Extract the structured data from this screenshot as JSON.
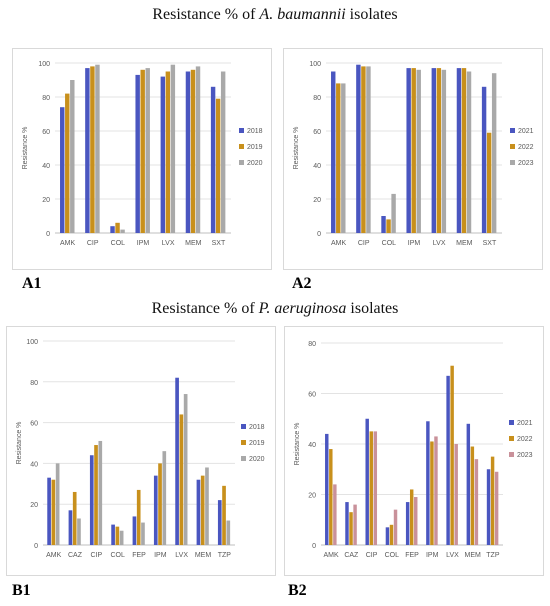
{
  "titles": {
    "top": {
      "prefix": "Resistance % of ",
      "italic": "A. baumannii",
      "suffix": " isolates"
    },
    "bottom": {
      "prefix": "Resistance % of ",
      "italic": "P. aeruginosa",
      "suffix": " isolates"
    }
  },
  "panel_labels": {
    "a1": "A1",
    "a2": "A2",
    "b1": "B1",
    "b2": "B2"
  },
  "colors": {
    "s1": "#4a56c0",
    "s2": "#c8901c",
    "s3": "#a9a9a9",
    "s3_alt": "#c9919a"
  },
  "chart_data": [
    {
      "id": "A1",
      "type": "bar",
      "categories": [
        "AMK",
        "CIP",
        "COL",
        "IPM",
        "LVX",
        "MEM",
        "SXT"
      ],
      "series": [
        {
          "name": "2018",
          "values": [
            74,
            97,
            4,
            93,
            92,
            95,
            86
          ]
        },
        {
          "name": "2019",
          "values": [
            82,
            98,
            6,
            96,
            95,
            96,
            79
          ]
        },
        {
          "name": "2020",
          "values": [
            90,
            99,
            2,
            97,
            99,
            98,
            95
          ]
        }
      ],
      "ylabel": "Resistance %",
      "ylim": [
        0,
        100
      ],
      "yticks": [
        0,
        20,
        40,
        60,
        80,
        100
      ],
      "grid": true,
      "legend": "right"
    },
    {
      "id": "A2",
      "type": "bar",
      "categories": [
        "AMK",
        "CIP",
        "COL",
        "IPM",
        "LVX",
        "MEM",
        "SXT"
      ],
      "series": [
        {
          "name": "2021",
          "values": [
            95,
            99,
            10,
            97,
            97,
            97,
            86
          ]
        },
        {
          "name": "2022",
          "values": [
            88,
            98,
            8,
            97,
            97,
            97,
            59
          ]
        },
        {
          "name": "2023",
          "values": [
            88,
            98,
            23,
            96,
            96,
            95,
            94
          ]
        }
      ],
      "ylabel": "Resistance %",
      "ylim": [
        0,
        100
      ],
      "yticks": [
        0,
        20,
        40,
        60,
        80,
        100
      ],
      "grid": true,
      "legend": "right"
    },
    {
      "id": "B1",
      "type": "bar",
      "categories": [
        "AMK",
        "CAZ",
        "CIP",
        "COL",
        "FEP",
        "IPM",
        "LVX",
        "MEM",
        "TZP"
      ],
      "series": [
        {
          "name": "2018",
          "values": [
            33,
            17,
            44,
            10,
            14,
            34,
            82,
            32,
            22
          ]
        },
        {
          "name": "2019",
          "values": [
            32,
            26,
            49,
            9,
            27,
            40,
            64,
            34,
            29
          ]
        },
        {
          "name": "2020",
          "values": [
            40,
            13,
            51,
            7,
            11,
            46,
            74,
            38,
            12
          ]
        }
      ],
      "ylabel": "Resistance %",
      "ylim": [
        0,
        100
      ],
      "yticks": [
        0,
        20,
        40,
        60,
        80,
        100
      ],
      "grid": true,
      "legend": "right"
    },
    {
      "id": "B2",
      "type": "bar",
      "categories": [
        "AMK",
        "CAZ",
        "CIP",
        "COL",
        "FEP",
        "IPM",
        "LVX",
        "MEM",
        "TZP"
      ],
      "series": [
        {
          "name": "2021",
          "values": [
            44,
            17,
            50,
            7,
            17,
            49,
            67,
            48,
            30
          ]
        },
        {
          "name": "2022",
          "values": [
            38,
            13,
            45,
            8,
            22,
            41,
            71,
            39,
            35
          ]
        },
        {
          "name": "2023",
          "values": [
            24,
            16,
            45,
            14,
            19,
            43,
            40,
            34,
            29
          ]
        }
      ],
      "ylabel": "Resistance %",
      "ylim": [
        0,
        80
      ],
      "yticks": [
        0,
        20,
        40,
        60,
        80
      ],
      "grid": true,
      "legend": "right"
    }
  ]
}
